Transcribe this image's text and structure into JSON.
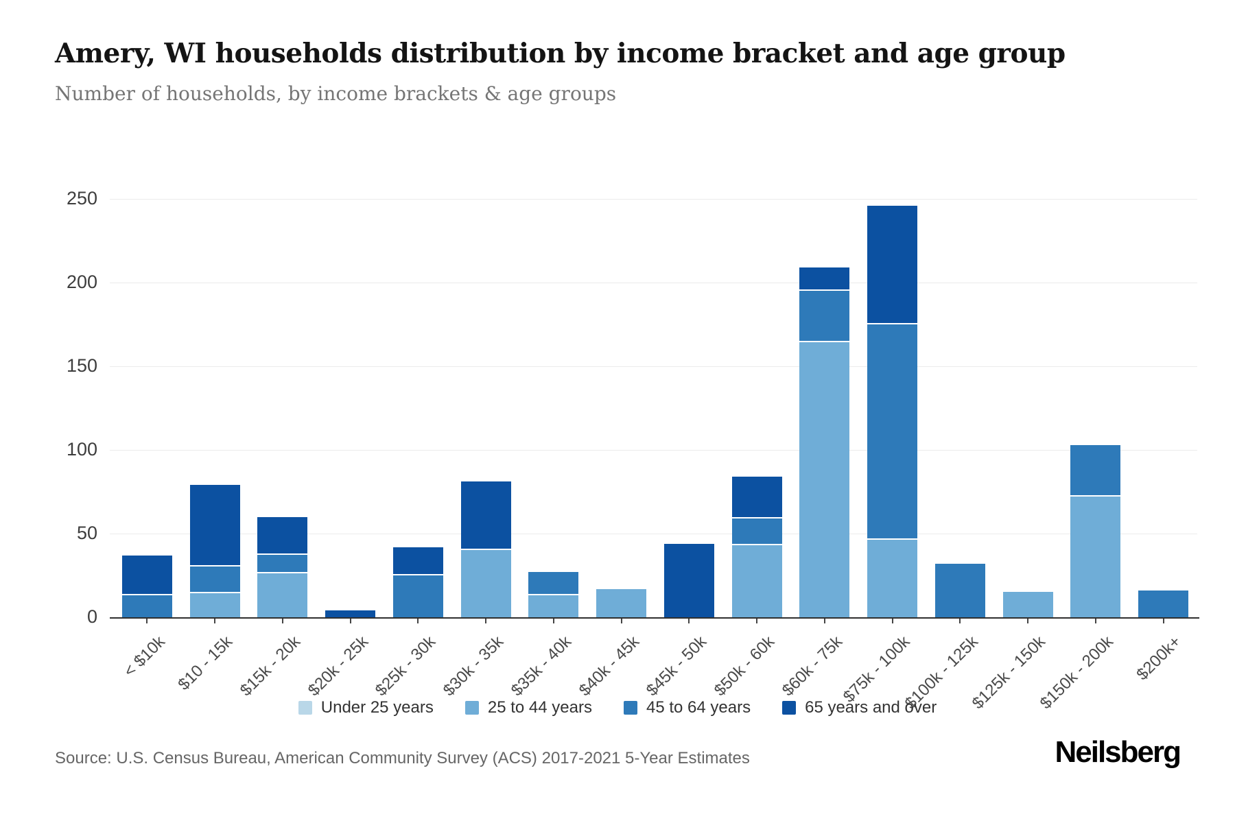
{
  "header": {
    "title": "Amery, WI households distribution by income bracket and age group",
    "subtitle": "Number of households, by income brackets & age groups"
  },
  "chart_data": {
    "type": "bar",
    "stacked": true,
    "title": "Amery, WI households distribution by income bracket and age group",
    "subtitle": "Number of households, by income brackets & age groups",
    "xlabel": "",
    "ylabel": "",
    "ylim": [
      0,
      250
    ],
    "yticks": [
      0,
      50,
      100,
      150,
      200,
      250
    ],
    "grid": true,
    "legend_position": "bottom",
    "categories": [
      "< $10k",
      "$10 - 15k",
      "$15k - 20k",
      "$20k - 25k",
      "$25k - 30k",
      "$30k - 35k",
      "$35k - 40k",
      "$40k - 45k",
      "$45k - 50k",
      "$50k - 60k",
      "$60k - 75k",
      "$75k - 100k",
      "$100k - 125k",
      "$125k - 150k",
      "$150k - 200k",
      "$200k+"
    ],
    "series": [
      {
        "name": "Under 25 years",
        "color": "#b9d7e8",
        "values": [
          0,
          0,
          0,
          0,
          0,
          0,
          0,
          0,
          0,
          0,
          0,
          0,
          0,
          0,
          0,
          0
        ]
      },
      {
        "name": "25 to 44 years",
        "color": "#6fadd7",
        "values": [
          0,
          15,
          27,
          0,
          0,
          41,
          14,
          17,
          0,
          44,
          165,
          47,
          0,
          15,
          73,
          0
        ]
      },
      {
        "name": "45 to 64 years",
        "color": "#2e7ab9",
        "values": [
          14,
          16,
          11,
          0,
          26,
          0,
          13,
          0,
          0,
          16,
          31,
          129,
          32,
          0,
          30,
          16
        ]
      },
      {
        "name": "65 years and over",
        "color": "#0c51a1",
        "values": [
          23,
          48,
          22,
          4,
          16,
          40,
          0,
          0,
          44,
          24,
          13,
          70,
          0,
          0,
          0,
          0
        ]
      }
    ]
  },
  "footer": {
    "source": "Source: U.S. Census Bureau, American Community Survey (ACS) 2017-2021 5-Year Estimates",
    "logo": "Neilsberg"
  }
}
